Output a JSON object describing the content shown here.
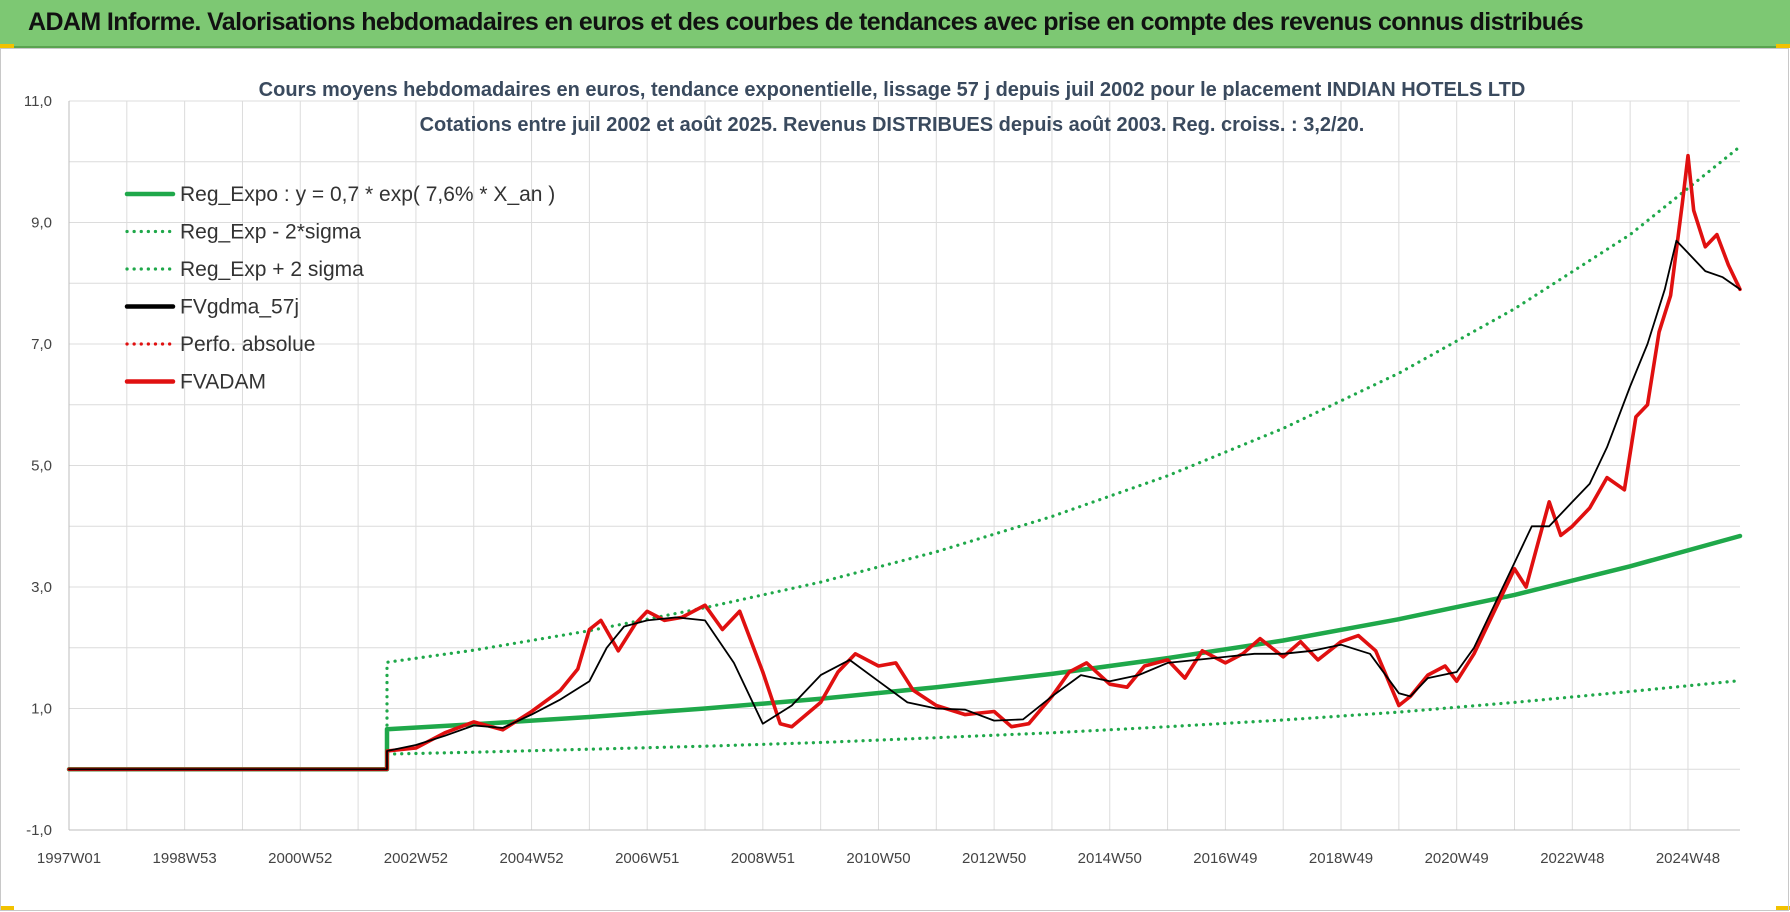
{
  "banner": {
    "title": "ADAM Informe. Valorisations hebdomadaires en euros et des courbes de tendances avec prise en compte des revenus connus distribués"
  },
  "chart_data": {
    "type": "line",
    "title": "Cours moyens hebdomadaires en euros, tendance exponentielle, lissage 57 j depuis juil 2002 pour le placement INDIAN HOTELS LTD",
    "subtitle": "Cotations entre juil 2002 et août 2025. Revenus DISTRIBUES depuis août 2003. Reg. croiss. : 3,2/20.",
    "xlabel": "",
    "ylabel": "",
    "x_tick_labels": [
      "1997W01",
      "1998W53",
      "2000W52",
      "2002W52",
      "2004W52",
      "2006W51",
      "2008W51",
      "2010W50",
      "2012W50",
      "2014W50",
      "2016W49",
      "2018W49",
      "2020W49",
      "2022W48",
      "2024W48"
    ],
    "x_tick_years": [
      1997,
      1999,
      2001,
      2003,
      2005,
      2007,
      2009,
      2011,
      2013,
      2015,
      2017,
      2019,
      2021,
      2023,
      2025
    ],
    "xlim": [
      1997.0,
      2025.9
    ],
    "y_tick_labels": [
      "-1,0",
      "1,0",
      "3,0",
      "5,0",
      "7,0",
      "9,0",
      "11,0"
    ],
    "y_ticks": [
      -1,
      1,
      3,
      5,
      7,
      9,
      11
    ],
    "ylim": [
      -1,
      11
    ],
    "grid": true,
    "legend_position": "top-left",
    "start_series_year": 2002.5,
    "series": [
      {
        "name": "Reg_Expo : y = 0,7 * exp( 7,6% *  X_an )",
        "style": "solid",
        "color": "#1fa84a",
        "x": [
          1997.0,
          2002.5,
          2002.5,
          2004.0,
          2006.0,
          2008.0,
          2010.0,
          2012.0,
          2014.0,
          2016.0,
          2018.0,
          2020.0,
          2022.0,
          2024.0,
          2025.9
        ],
        "y": [
          0.0,
          0.0,
          0.66,
          0.74,
          0.86,
          1.0,
          1.16,
          1.35,
          1.57,
          1.83,
          2.12,
          2.47,
          2.87,
          3.34,
          3.84
        ]
      },
      {
        "name": "Reg_Exp - 2*sigma",
        "style": "dotted",
        "color": "#1fa84a",
        "x": [
          1997.0,
          2002.5,
          2002.5,
          2004.0,
          2006.0,
          2008.0,
          2010.0,
          2012.0,
          2014.0,
          2016.0,
          2018.0,
          2020.0,
          2022.0,
          2024.0,
          2025.9
        ],
        "y": [
          0.0,
          0.0,
          0.25,
          0.28,
          0.33,
          0.38,
          0.44,
          0.52,
          0.6,
          0.7,
          0.81,
          0.94,
          1.1,
          1.28,
          1.46
        ]
      },
      {
        "name": "Reg_Exp + 2 sigma",
        "style": "dotted",
        "color": "#1fa84a",
        "x": [
          1997.0,
          2002.5,
          2002.5,
          2004.0,
          2006.0,
          2008.0,
          2010.0,
          2012.0,
          2014.0,
          2016.0,
          2018.0,
          2020.0,
          2022.0,
          2024.0,
          2025.9
        ],
        "y": [
          0.0,
          0.0,
          1.76,
          1.96,
          2.28,
          2.66,
          3.08,
          3.58,
          4.16,
          4.83,
          5.61,
          6.52,
          7.58,
          8.8,
          10.25
        ]
      },
      {
        "name": "FVgdma_57j",
        "style": "solid",
        "color": "#000000",
        "x": [
          1997.0,
          2002.5,
          2002.5,
          2003.0,
          2003.5,
          2004.0,
          2004.5,
          2005.0,
          2005.5,
          2006.0,
          2006.3,
          2006.6,
          2007.0,
          2007.5,
          2008.0,
          2008.5,
          2009.0,
          2009.5,
          2010.0,
          2010.5,
          2011.0,
          2011.5,
          2012.0,
          2012.5,
          2013.0,
          2013.5,
          2014.0,
          2014.5,
          2015.0,
          2015.5,
          2016.0,
          2016.5,
          2017.0,
          2017.5,
          2018.0,
          2018.5,
          2019.0,
          2019.5,
          2020.0,
          2020.2,
          2020.5,
          2021.0,
          2021.3,
          2021.6,
          2022.0,
          2022.3,
          2022.6,
          2023.0,
          2023.3,
          2023.6,
          2024.0,
          2024.3,
          2024.6,
          2024.8,
          2025.0,
          2025.3,
          2025.6,
          2025.9
        ],
        "y": [
          0.0,
          0.0,
          0.3,
          0.4,
          0.55,
          0.72,
          0.68,
          0.9,
          1.15,
          1.45,
          2.0,
          2.35,
          2.45,
          2.5,
          2.45,
          1.75,
          0.75,
          1.05,
          1.55,
          1.8,
          1.45,
          1.1,
          1.0,
          0.98,
          0.8,
          0.82,
          1.2,
          1.55,
          1.45,
          1.55,
          1.75,
          1.8,
          1.85,
          1.9,
          1.9,
          1.95,
          2.05,
          1.9,
          1.25,
          1.2,
          1.5,
          1.6,
          2.0,
          2.6,
          3.4,
          4.0,
          4.0,
          4.4,
          4.7,
          5.3,
          6.3,
          7.0,
          7.9,
          8.7,
          8.5,
          8.2,
          8.1,
          7.9
        ]
      },
      {
        "name": "Perfo. absolue",
        "style": "dotted",
        "color": "#e01010",
        "x": [
          1997.0,
          2002.5
        ],
        "y": [
          0.0,
          0.0
        ]
      },
      {
        "name": "FVADAM",
        "style": "solid",
        "color": "#e01010",
        "x": [
          1997.0,
          2002.5,
          2002.5,
          2003.0,
          2003.5,
          2004.0,
          2004.5,
          2005.0,
          2005.5,
          2005.8,
          2006.0,
          2006.2,
          2006.5,
          2006.8,
          2007.0,
          2007.3,
          2007.6,
          2008.0,
          2008.3,
          2008.6,
          2009.0,
          2009.3,
          2009.5,
          2010.0,
          2010.3,
          2010.6,
          2011.0,
          2011.3,
          2011.6,
          2012.0,
          2012.5,
          2013.0,
          2013.3,
          2013.6,
          2014.0,
          2014.3,
          2014.6,
          2015.0,
          2015.3,
          2015.6,
          2016.0,
          2016.3,
          2016.6,
          2017.0,
          2017.3,
          2017.6,
          2018.0,
          2018.3,
          2018.6,
          2019.0,
          2019.3,
          2019.6,
          2020.0,
          2020.2,
          2020.5,
          2020.8,
          2021.0,
          2021.3,
          2021.6,
          2022.0,
          2022.2,
          2022.4,
          2022.6,
          2022.8,
          2023.0,
          2023.3,
          2023.6,
          2023.9,
          2024.1,
          2024.3,
          2024.5,
          2024.7,
          2024.9,
          2025.0,
          2025.1,
          2025.3,
          2025.5,
          2025.7,
          2025.9
        ],
        "y": [
          0.0,
          0.0,
          0.3,
          0.35,
          0.6,
          0.78,
          0.65,
          0.95,
          1.3,
          1.65,
          2.3,
          2.45,
          1.95,
          2.4,
          2.6,
          2.45,
          2.5,
          2.7,
          2.3,
          2.6,
          1.6,
          0.75,
          0.7,
          1.1,
          1.6,
          1.9,
          1.7,
          1.75,
          1.3,
          1.05,
          0.9,
          0.95,
          0.7,
          0.75,
          1.2,
          1.6,
          1.75,
          1.4,
          1.35,
          1.7,
          1.8,
          1.5,
          1.95,
          1.75,
          1.9,
          2.15,
          1.85,
          2.1,
          1.8,
          2.1,
          2.2,
          1.95,
          1.05,
          1.2,
          1.55,
          1.7,
          1.45,
          1.9,
          2.5,
          3.3,
          3.0,
          3.7,
          4.4,
          3.85,
          4.0,
          4.3,
          4.8,
          4.6,
          5.8,
          6.0,
          7.2,
          7.8,
          9.3,
          10.1,
          9.2,
          8.6,
          8.8,
          8.3,
          7.9
        ]
      }
    ]
  }
}
